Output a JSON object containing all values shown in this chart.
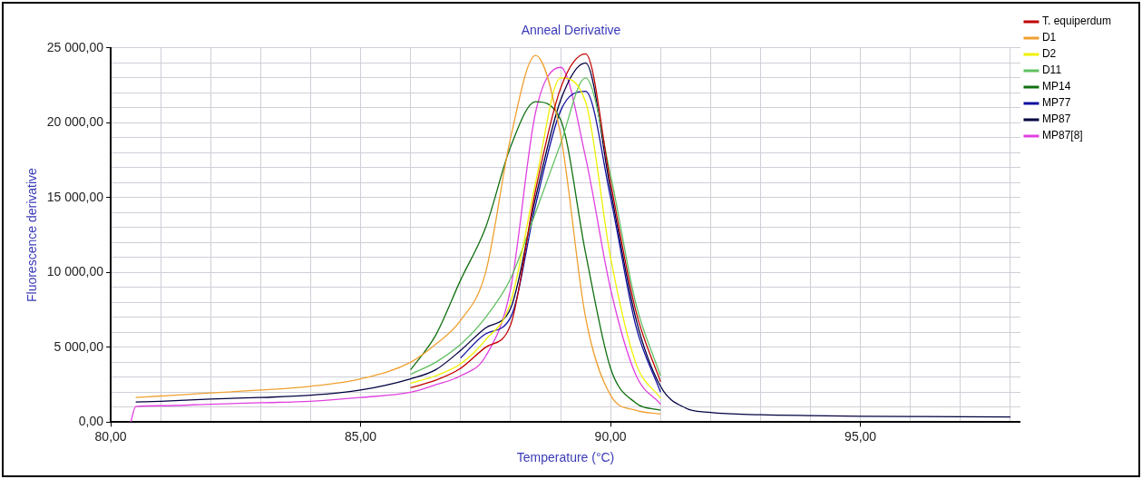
{
  "chart_data": {
    "type": "line",
    "title": "Anneal Derivative",
    "xlabel": "Temperature (°C)",
    "ylabel": "Fluorescence derivative",
    "x": [
      80.4,
      80.5,
      81,
      82,
      83,
      84,
      85,
      86,
      86.5,
      87,
      87.5,
      88,
      88.5,
      89,
      89.5,
      90,
      90.5,
      91,
      91.5,
      92,
      93,
      94,
      95,
      96,
      97,
      98
    ],
    "series": [
      {
        "name": "T. equiperdum",
        "color": "#c00000",
        "values": [
          null,
          null,
          null,
          null,
          null,
          null,
          null,
          2300,
          2800,
          3600,
          5000,
          6500,
          15500,
          22300,
          24600,
          16000,
          7500,
          2700,
          null,
          null,
          null,
          null,
          null,
          null,
          null,
          null
        ]
      },
      {
        "name": "D1",
        "color": "#f0a030",
        "values": [
          null,
          1650,
          1750,
          1950,
          2150,
          2400,
          2900,
          4000,
          5200,
          6800,
          10000,
          19000,
          24500,
          19200,
          7000,
          1800,
          800,
          550,
          null,
          null,
          null,
          null,
          null,
          null,
          null,
          null
        ]
      },
      {
        "name": "D2",
        "color": "#f0f000",
        "values": [
          null,
          null,
          null,
          null,
          null,
          null,
          null,
          2600,
          3100,
          3900,
          5500,
          8000,
          16000,
          23000,
          21400,
          11000,
          4000,
          1600,
          null,
          null,
          null,
          null,
          null,
          null,
          null,
          null
        ]
      },
      {
        "name": "D11",
        "color": "#60c060",
        "values": [
          null,
          null,
          null,
          null,
          null,
          null,
          null,
          3200,
          4000,
          5200,
          7000,
          9600,
          14000,
          18600,
          23000,
          16500,
          8000,
          3100,
          null,
          null,
          null,
          null,
          null,
          null,
          null,
          null
        ]
      },
      {
        "name": "MP14",
        "color": "#107010",
        "values": [
          null,
          null,
          null,
          null,
          null,
          null,
          null,
          3500,
          5800,
          9500,
          13000,
          18400,
          21400,
          20200,
          11300,
          3600,
          1300,
          800,
          null,
          null,
          null,
          null,
          null,
          null,
          null,
          null
        ]
      },
      {
        "name": "MP77",
        "color": "#1010a0",
        "values": [
          null,
          null,
          null,
          null,
          null,
          null,
          null,
          null,
          null,
          4300,
          5900,
          7000,
          14500,
          20800,
          22100,
          15000,
          6500,
          2000,
          null,
          null,
          null,
          null,
          null,
          null,
          null,
          null
        ]
      },
      {
        "name": "MP87",
        "color": "#000040",
        "values": [
          null,
          1350,
          1400,
          1550,
          1650,
          1800,
          2150,
          2900,
          3500,
          4800,
          6300,
          7600,
          15000,
          21500,
          24000,
          15500,
          7000,
          2400,
          950,
          650,
          500,
          440,
          400,
          380,
          360,
          350
        ]
      },
      {
        "name": "MP87[8]",
        "color": "#e040e0",
        "values": [
          0,
          1050,
          1100,
          1200,
          1300,
          1400,
          1650,
          2000,
          2500,
          3100,
          4400,
          8900,
          20700,
          23700,
          17700,
          8900,
          3200,
          1200,
          null,
          null,
          null,
          null,
          null,
          null,
          null,
          null
        ]
      }
    ],
    "xlim": [
      80,
      98.2
    ],
    "xticks": [
      {
        "value": 80,
        "label": "80,00"
      },
      {
        "value": 81,
        "label": null
      },
      {
        "value": 82,
        "label": null
      },
      {
        "value": 83,
        "label": null
      },
      {
        "value": 84,
        "label": null
      },
      {
        "value": 85,
        "label": "85,00"
      },
      {
        "value": 86,
        "label": null
      },
      {
        "value": 87,
        "label": null
      },
      {
        "value": 88,
        "label": null
      },
      {
        "value": 89,
        "label": null
      },
      {
        "value": 90,
        "label": "90,00"
      },
      {
        "value": 91,
        "label": null
      },
      {
        "value": 92,
        "label": null
      },
      {
        "value": 93,
        "label": null
      },
      {
        "value": 94,
        "label": null
      },
      {
        "value": 95,
        "label": "95,00"
      },
      {
        "value": 96,
        "label": null
      },
      {
        "value": 97,
        "label": null
      },
      {
        "value": 98,
        "label": null
      }
    ],
    "ylim": [
      0,
      25000
    ],
    "yticks": [
      {
        "value": 0,
        "label": "0,00"
      },
      {
        "value": 1000,
        "label": null
      },
      {
        "value": 2000,
        "label": null
      },
      {
        "value": 3000,
        "label": null
      },
      {
        "value": 4000,
        "label": null
      },
      {
        "value": 5000,
        "label": "5 000,00"
      },
      {
        "value": 6000,
        "label": null
      },
      {
        "value": 7000,
        "label": null
      },
      {
        "value": 8000,
        "label": null
      },
      {
        "value": 9000,
        "label": null
      },
      {
        "value": 10000,
        "label": "10 000,00"
      },
      {
        "value": 11000,
        "label": null
      },
      {
        "value": 12000,
        "label": null
      },
      {
        "value": 13000,
        "label": null
      },
      {
        "value": 14000,
        "label": null
      },
      {
        "value": 15000,
        "label": "15 000,00"
      },
      {
        "value": 16000,
        "label": null
      },
      {
        "value": 17000,
        "label": null
      },
      {
        "value": 18000,
        "label": null
      },
      {
        "value": 19000,
        "label": null
      },
      {
        "value": 20000,
        "label": "20 000,00"
      },
      {
        "value": 21000,
        "label": null
      },
      {
        "value": 22000,
        "label": null
      },
      {
        "value": 23000,
        "label": null
      },
      {
        "value": 24000,
        "label": null
      },
      {
        "value": 25000,
        "label": "25 000,00"
      }
    ],
    "grid": true,
    "legend": "right",
    "marker": "none",
    "line_style": "solid"
  }
}
